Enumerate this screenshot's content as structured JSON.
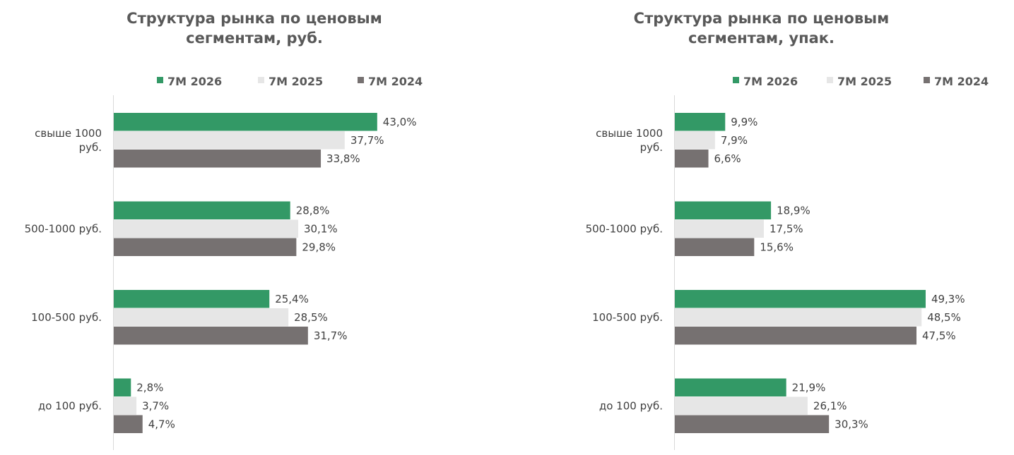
{
  "colors": {
    "s2026": "#339966",
    "s2025": "#e6e6e6",
    "s2024": "#767171",
    "axis": "#d9d9d9",
    "text": "#404040",
    "title": "#595959"
  },
  "chart_data": [
    {
      "type": "bar",
      "orientation": "horizontal",
      "title_lines": [
        "Структура рынка по ценовым",
        "сегментам, руб."
      ],
      "categories": [
        [
          "свыше 1000",
          "руб."
        ],
        [
          "500-1000 руб."
        ],
        [
          "100-500 руб."
        ],
        [
          "до 100 руб."
        ]
      ],
      "series": [
        {
          "name": "7М 2026",
          "values": [
            43.0,
            28.8,
            25.4,
            2.8
          ],
          "labels": [
            "43,0%",
            "28,8%",
            "25,4%",
            "2,8%"
          ]
        },
        {
          "name": "7М 2025",
          "values": [
            37.7,
            30.1,
            28.5,
            3.7
          ],
          "labels": [
            "37,7%",
            "30,1%",
            "28,5%",
            "3,7%"
          ]
        },
        {
          "name": "7М 2024",
          "values": [
            33.8,
            29.8,
            31.7,
            4.7
          ],
          "labels": [
            "33,8%",
            "29,8%",
            "31,7%",
            "4,7%"
          ]
        }
      ],
      "legend_position": "top-right",
      "grid": false
    },
    {
      "type": "bar",
      "orientation": "horizontal",
      "title_lines": [
        "Структура рынка по ценовым",
        "сегментам, упак."
      ],
      "categories": [
        [
          "свыше 1000",
          "руб."
        ],
        [
          "500-1000 руб."
        ],
        [
          "100-500 руб."
        ],
        [
          "до 100 руб."
        ]
      ],
      "series": [
        {
          "name": "7М 2026",
          "values": [
            9.9,
            18.9,
            49.3,
            21.9
          ],
          "labels": [
            "9,9%",
            "18,9%",
            "49,3%",
            "21,9%"
          ]
        },
        {
          "name": "7М 2025",
          "values": [
            7.9,
            17.5,
            48.5,
            26.1
          ],
          "labels": [
            "7,9%",
            "17,5%",
            "48,5%",
            "26,1%"
          ]
        },
        {
          "name": "7М 2024",
          "values": [
            6.6,
            15.6,
            47.5,
            30.3
          ],
          "labels": [
            "6,6%",
            "15,6%",
            "47,5%",
            "30,3%"
          ]
        }
      ],
      "legend_position": "top-right",
      "grid": false
    }
  ]
}
